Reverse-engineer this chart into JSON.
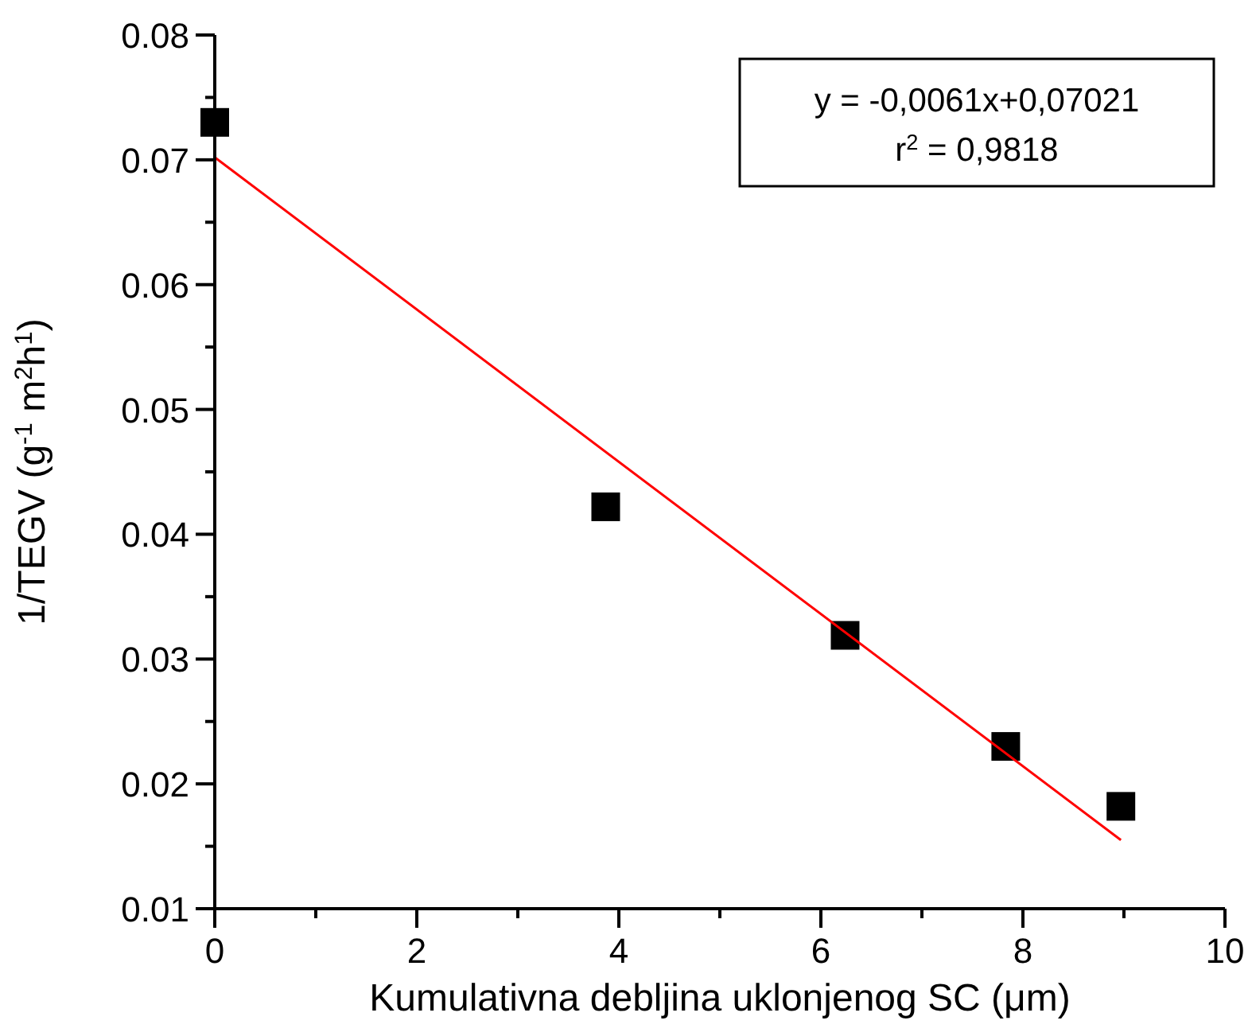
{
  "chart_data": {
    "type": "scatter",
    "xlabel": "Kumulativna debljina uklonjenog SC (μm)",
    "ylabel": "1/TEGV (g$^{-1}$ m$^{2}$h$^{1}$)",
    "xlim": [
      0,
      10
    ],
    "xticks": [
      0,
      {
        "value": 1,
        "label": null
      },
      2,
      {
        "value": 3,
        "label": null
      },
      4,
      {
        "value": 5,
        "label": null
      },
      6,
      {
        "value": 7,
        "label": null
      },
      8,
      {
        "value": 9,
        "label": null
      },
      10
    ],
    "ylim": [
      0.01,
      0.08
    ],
    "yticks": [
      0.01,
      {
        "value": 0.015,
        "label": null
      },
      0.02,
      {
        "value": 0.025,
        "label": null
      },
      0.03,
      {
        "value": 0.035,
        "label": null
      },
      0.04,
      {
        "value": 0.045,
        "label": null
      },
      0.05,
      {
        "value": 0.055,
        "label": null
      },
      0.06,
      {
        "value": 0.065,
        "label": null
      },
      0.07,
      {
        "value": 0.075,
        "label": null
      },
      0.08
    ],
    "grid": false,
    "annotations": [
      "y = -0,0061x+0,07021",
      "r$^{2}$ = 0,9818"
    ],
    "series": [
      {
        "marker": "square",
        "color": "#000000",
        "x": [
          0,
          3.87,
          6.24,
          7.83,
          8.97
        ],
        "values": [
          0.073,
          0.0422,
          0.0319,
          0.023,
          0.0182
        ]
      },
      {
        "type": "line",
        "color": "#ff0000",
        "x": [
          0,
          8.97
        ],
        "values": [
          0.0702,
          0.0155
        ]
      }
    ]
  }
}
